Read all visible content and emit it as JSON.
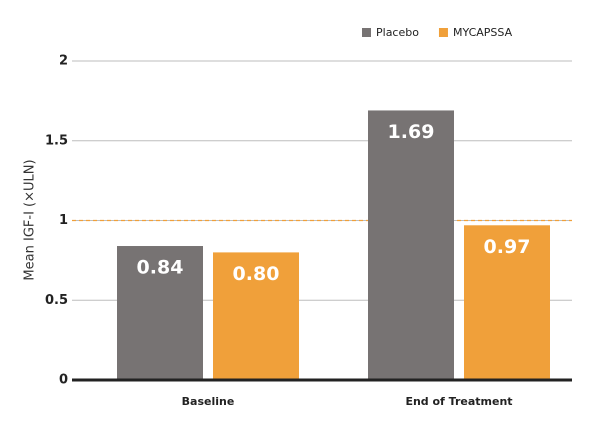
{
  "chart_data": {
    "type": "bar",
    "y_label": "Mean IGF-I (×ULN)",
    "categories": [
      "Baseline",
      "End of Treatment"
    ],
    "series": [
      {
        "name": "Placebo",
        "color": "#777373",
        "values": [
          0.84,
          1.69
        ],
        "value_labels": [
          "0.84",
          "1.69"
        ]
      },
      {
        "name": "MYCAPSSA",
        "color": "#f0a03a",
        "values": [
          0.8,
          0.97
        ],
        "value_labels": [
          "0.80",
          "0.97"
        ]
      }
    ],
    "ylim": [
      0,
      2
    ],
    "yticks": [
      0,
      0.5,
      1,
      1.5,
      2
    ],
    "grid": true,
    "reference_line": 1,
    "reference_color": "#f0a03a",
    "legend": "top-right"
  }
}
